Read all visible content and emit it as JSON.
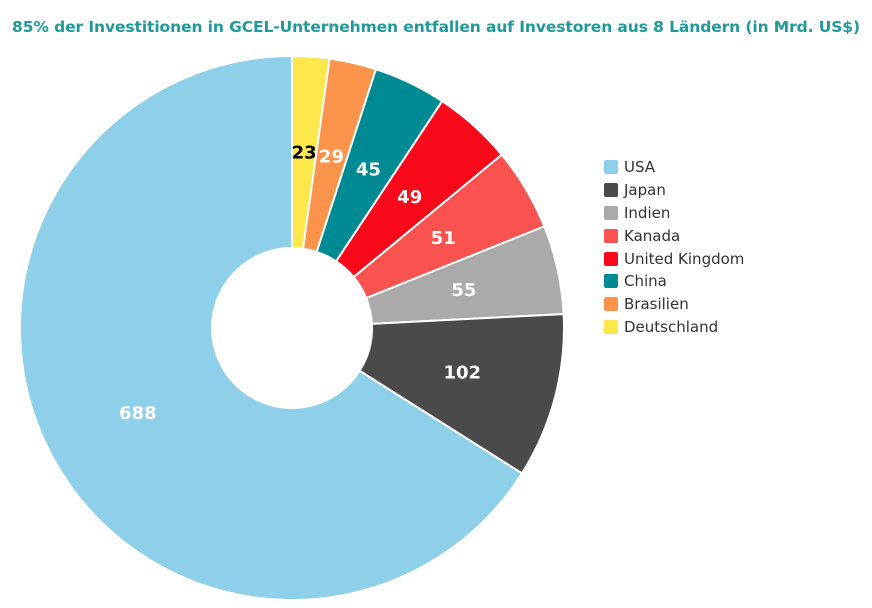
{
  "chart_data": {
    "type": "pie",
    "donut": true,
    "title": "85% der Investitionen in GCEL-Unternehmen entfallen auf Investoren aus 8 Ländern (in Mrd. US$)",
    "legend_position": "right",
    "slices": [
      {
        "name": "USA",
        "value": 688,
        "color": "#8ecfea",
        "label_color": "#ffffff"
      },
      {
        "name": "Japan",
        "value": 102,
        "color": "#4a4a4a",
        "label_color": "#ffffff"
      },
      {
        "name": "Indien",
        "value": 55,
        "color": "#aaaaaa",
        "label_color": "#ffffff"
      },
      {
        "name": "Kanada",
        "value": 51,
        "color": "#f9524f",
        "label_color": "#ffffff"
      },
      {
        "name": "United Kingdom",
        "value": 49,
        "color": "#f7091a",
        "label_color": "#ffffff"
      },
      {
        "name": "China",
        "value": 45,
        "color": "#008b94",
        "label_color": "#ffffff"
      },
      {
        "name": "Brasilien",
        "value": 29,
        "color": "#fb944a",
        "label_color": "#ffffff"
      },
      {
        "name": "Deutschland",
        "value": 23,
        "color": "#fde84b",
        "label_color": "#000000"
      }
    ]
  }
}
